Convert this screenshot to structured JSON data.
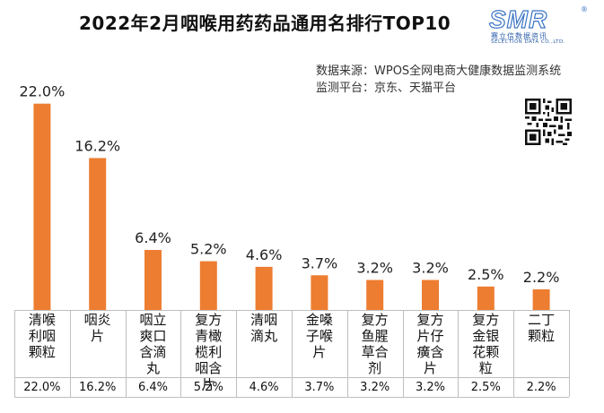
{
  "header": {
    "title": "2022年2月咽喉用药药品通用名排行TOP10",
    "source_line1": "数据来源：WPOS全网电商大健康数据监测系统",
    "source_line2": "监测平台：京东、天猫平台"
  },
  "logo": {
    "mark": "SMR",
    "registered": "®",
    "cn": "赛立信数据资讯",
    "en": "SELECTION DATA CO.,LTD."
  },
  "colors": {
    "bar": "#ed7d31"
  },
  "chart_data": {
    "type": "bar",
    "title": "2022年2月咽喉用药药品通用名排行TOP10",
    "categories": [
      "清喉利咽颗粒",
      "咽炎片",
      "咽立爽口含滴丸",
      "复方青橄榄利咽含片",
      "清咽滴丸",
      "金嗓子喉片",
      "复方鱼腥草合剂",
      "复方片仔癀含片",
      "复方金银花颗粒",
      "二丁颗粒"
    ],
    "values": [
      22.0,
      16.2,
      6.4,
      5.2,
      4.6,
      3.7,
      3.2,
      3.2,
      2.5,
      2.2
    ],
    "value_labels": [
      "22.0%",
      "16.2%",
      "6.4%",
      "5.2%",
      "4.6%",
      "3.7%",
      "3.2%",
      "3.2%",
      "2.5%",
      "2.2%"
    ],
    "xlabel": "",
    "ylabel": "",
    "ylim": [
      0,
      23.5
    ],
    "unit": "%"
  }
}
